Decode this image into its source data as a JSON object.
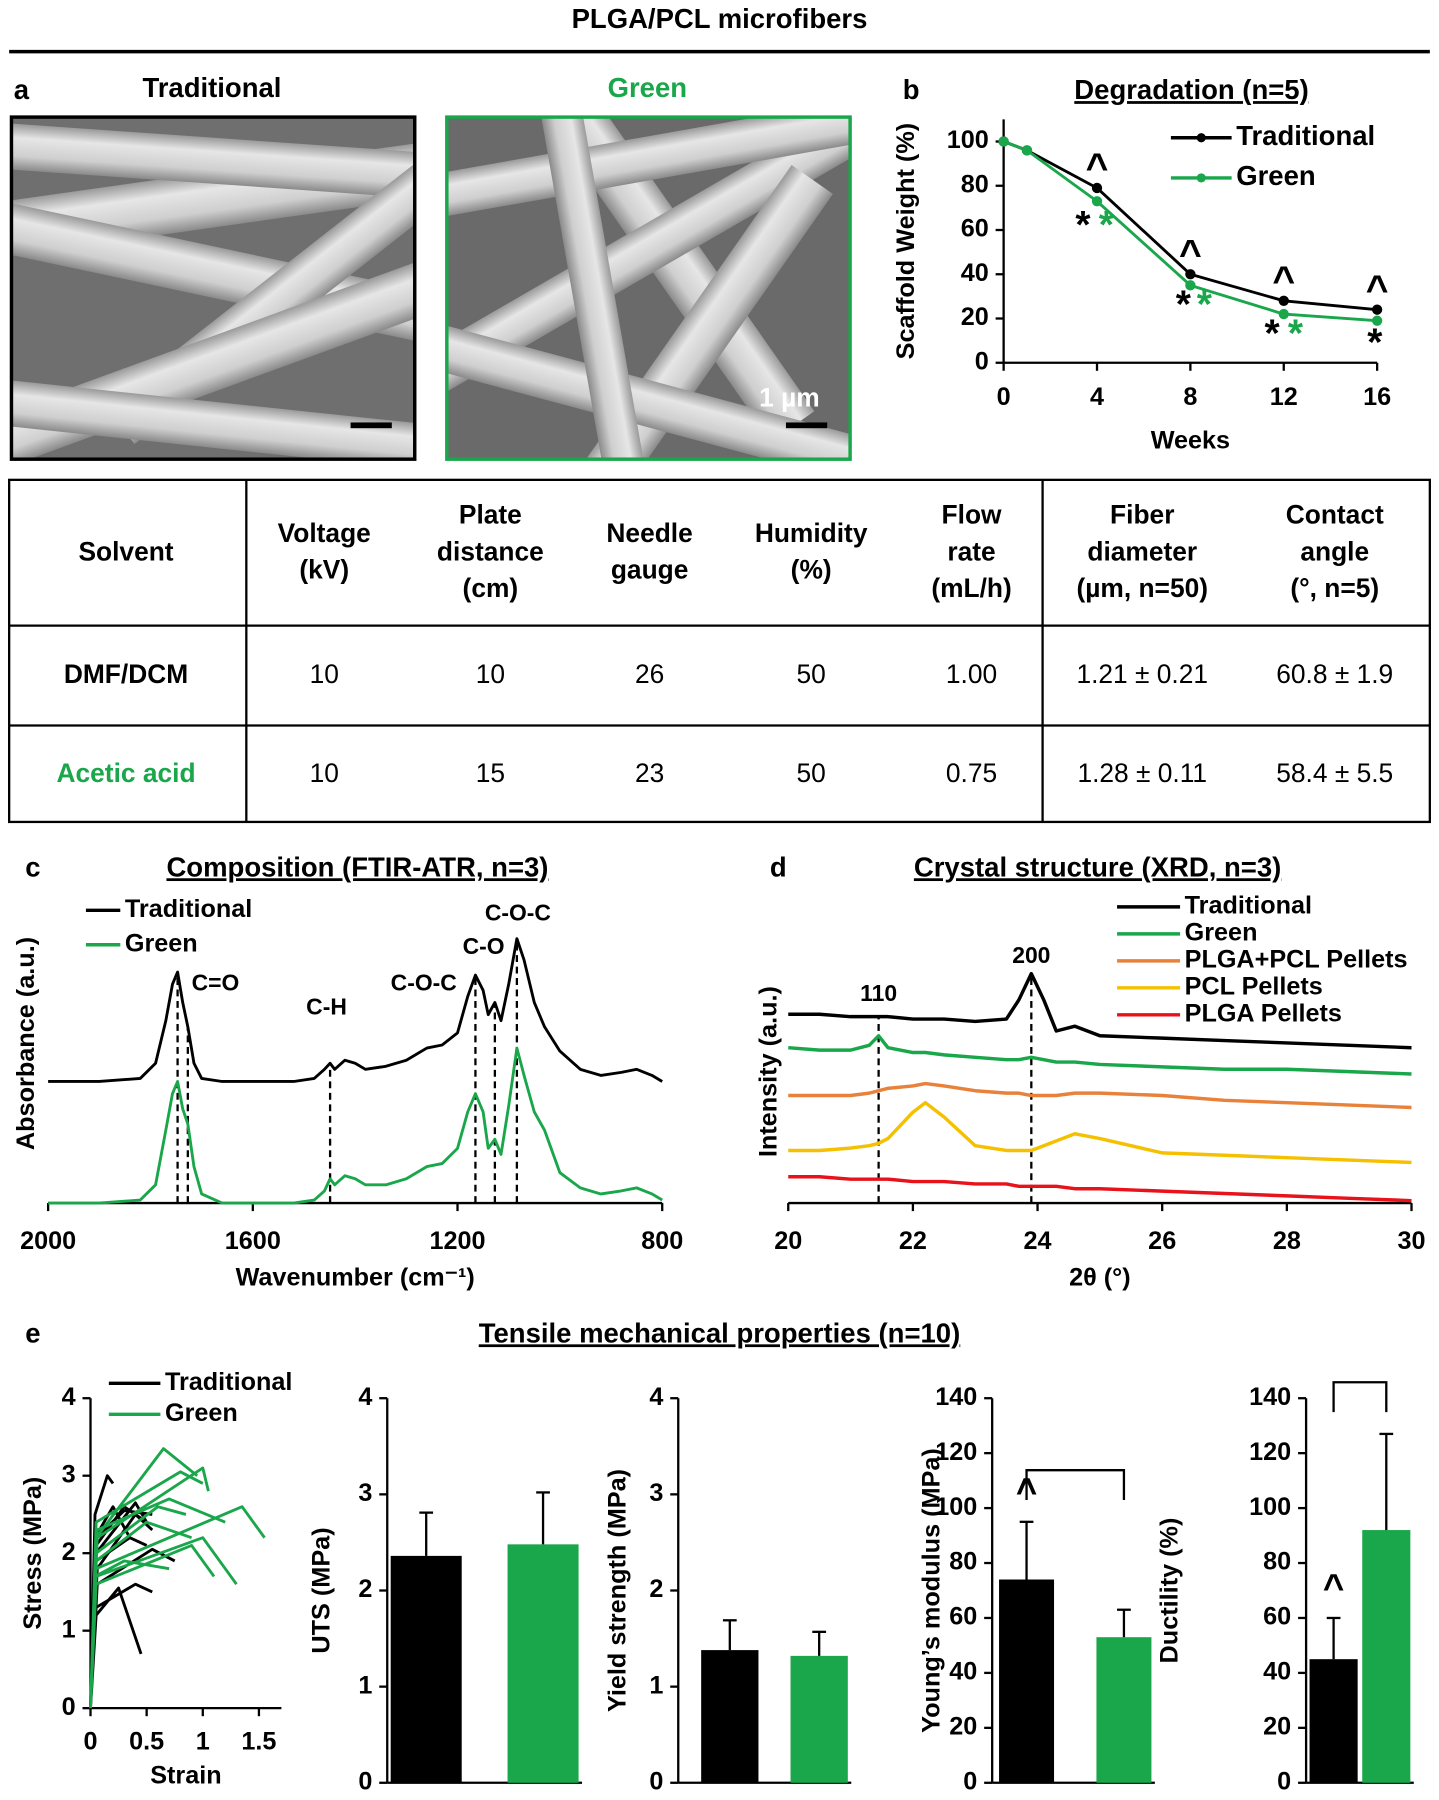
{
  "title": "PLGA/PCL microfibers",
  "panel_a": {
    "label": "a",
    "images": [
      {
        "title": "Traditional"
      },
      {
        "title": "Green",
        "scale_bar": "1 µm"
      }
    ]
  },
  "table": {
    "header": [
      [
        "Solvent"
      ],
      [
        "Voltage",
        "(kV)"
      ],
      [
        "Plate",
        "distance",
        "(cm)"
      ],
      [
        "Needle",
        "gauge"
      ],
      [
        "Humidity",
        "(%)"
      ],
      [
        "Flow",
        "rate",
        "(mL/h)"
      ],
      [
        "Fiber",
        "diameter",
        "(µm, n=50)"
      ],
      [
        "Contact",
        "angle",
        "(°, n=5)"
      ]
    ],
    "rows": [
      [
        "DMF/DCM",
        "10",
        "10",
        "26",
        "50",
        "1.00",
        "1.21 ± 0.21",
        "60.8 ± 1.9"
      ],
      [
        "Acetic acid",
        "10",
        "15",
        "23",
        "50",
        "0.75",
        "1.28 ± 0.11",
        "58.4 ± 5.5"
      ]
    ]
  },
  "section_e": {
    "label": "e",
    "title": "Tensile mechanical properties (n=10)"
  },
  "chart_data": [
    {
      "type": "line",
      "panel": "b",
      "title": "Degradation (n=5)",
      "xlabel": "Weeks",
      "ylabel": "Scaffold Weight (%)",
      "x": [
        0,
        1,
        4,
        8,
        12,
        16
      ],
      "series": [
        {
          "name": "Traditional",
          "color": "#000000",
          "values": [
            100,
            96,
            79,
            40,
            28,
            24
          ]
        },
        {
          "name": "Green",
          "color": "#1aa64a",
          "values": [
            100,
            96,
            73,
            35,
            22,
            19
          ]
        }
      ],
      "xlim": [
        0,
        16
      ],
      "xticks": [
        0,
        4,
        8,
        12,
        16
      ],
      "ylim": [
        0,
        110
      ],
      "yticks": [
        0,
        20,
        40,
        60,
        80,
        100
      ],
      "markers": true,
      "legend": "upper right",
      "annotations": [
        {
          "text": "^",
          "x": 4,
          "y": 87,
          "color": "#000000"
        },
        {
          "text": "^",
          "x": 8,
          "y": 48,
          "color": "#000000"
        },
        {
          "text": "^",
          "x": 12,
          "y": 36,
          "color": "#000000"
        },
        {
          "text": "^",
          "x": 16,
          "y": 32,
          "color": "#000000"
        },
        {
          "text": "*",
          "x": 3.4,
          "y": 61,
          "color": "#000000"
        },
        {
          "text": "*",
          "x": 4.4,
          "y": 61,
          "color": "#1aa64a"
        },
        {
          "text": "*",
          "x": 7.7,
          "y": 25,
          "color": "#000000"
        },
        {
          "text": "*",
          "x": 8.6,
          "y": 25,
          "color": "#1aa64a"
        },
        {
          "text": "*",
          "x": 11.5,
          "y": 12,
          "color": "#000000"
        },
        {
          "text": "*",
          "x": 12.5,
          "y": 12,
          "color": "#1aa64a"
        },
        {
          "text": "*",
          "x": 15.9,
          "y": 8,
          "color": "#000000"
        }
      ]
    },
    {
      "type": "line",
      "panel": "c",
      "title": "Composition (FTIR-ATR, n=3)",
      "xlabel": "Wavenumber (cm⁻¹)",
      "ylabel": "Absorbance (a.u.)",
      "x": [
        2000,
        1900,
        1820,
        1790,
        1770,
        1757,
        1747,
        1737,
        1727,
        1715,
        1700,
        1660,
        1600,
        1520,
        1480,
        1460,
        1449,
        1440,
        1420,
        1400,
        1380,
        1340,
        1300,
        1260,
        1230,
        1200,
        1180,
        1165,
        1150,
        1140,
        1127,
        1115,
        1100,
        1084,
        1070,
        1050,
        1030,
        1000,
        960,
        920,
        880,
        850,
        820,
        800
      ],
      "series": [
        {
          "name": "Traditional",
          "color": "#000000",
          "values": [
            0.4,
            0.4,
            0.41,
            0.46,
            0.6,
            0.72,
            0.76,
            0.66,
            0.58,
            0.46,
            0.41,
            0.4,
            0.4,
            0.4,
            0.41,
            0.44,
            0.46,
            0.44,
            0.47,
            0.46,
            0.44,
            0.45,
            0.47,
            0.51,
            0.52,
            0.56,
            0.68,
            0.75,
            0.7,
            0.62,
            0.66,
            0.6,
            0.72,
            0.87,
            0.8,
            0.66,
            0.58,
            0.5,
            0.44,
            0.42,
            0.43,
            0.44,
            0.42,
            0.4
          ]
        },
        {
          "name": "Green",
          "color": "#1aa64a",
          "values": [
            0,
            0,
            0.01,
            0.06,
            0.24,
            0.36,
            0.4,
            0.31,
            0.26,
            0.12,
            0.03,
            0,
            0,
            0,
            0.01,
            0.04,
            0.08,
            0.06,
            0.09,
            0.08,
            0.06,
            0.06,
            0.08,
            0.12,
            0.13,
            0.18,
            0.3,
            0.36,
            0.3,
            0.18,
            0.21,
            0.16,
            0.32,
            0.51,
            0.42,
            0.3,
            0.24,
            0.1,
            0.05,
            0.03,
            0.04,
            0.05,
            0.03,
            0.01
          ]
        }
      ],
      "xlim": [
        2000,
        800
      ],
      "xticks": [
        2000,
        1600,
        1200,
        800
      ],
      "ylim": [
        0,
        1.05
      ],
      "legend": "upper left",
      "peak_lines": [
        1747,
        1727,
        1449,
        1165,
        1127,
        1084
      ],
      "annotations": [
        {
          "text": "C=O",
          "x": 1673,
          "y": 0.72
        },
        {
          "text": "C-H",
          "x": 1456,
          "y": 0.64
        },
        {
          "text": "C-O-C",
          "x": 1266,
          "y": 0.72
        },
        {
          "text": "C-O",
          "x": 1149,
          "y": 0.84
        },
        {
          "text": "C-O-C",
          "x": 1082,
          "y": 0.95
        }
      ]
    },
    {
      "type": "line",
      "panel": "d",
      "title": "Crystal structure (XRD, n=3)",
      "xlabel": "2θ (°)",
      "ylabel": "Intensity (a.u.)",
      "x": [
        20,
        20.5,
        21,
        21.3,
        21.45,
        21.6,
        22,
        22.2,
        22.5,
        23,
        23.5,
        23.7,
        23.9,
        24.1,
        24.3,
        24.6,
        25,
        26,
        27,
        28,
        29,
        30
      ],
      "series": [
        {
          "name": "Traditional",
          "color": "#000000",
          "values": [
            0.79,
            0.79,
            0.78,
            0.78,
            0.78,
            0.78,
            0.77,
            0.77,
            0.77,
            0.76,
            0.77,
            0.85,
            0.96,
            0.85,
            0.72,
            0.74,
            0.7,
            0.69,
            0.68,
            0.67,
            0.66,
            0.65
          ]
        },
        {
          "name": "Green",
          "color": "#1aa64a",
          "values": [
            0.65,
            0.64,
            0.64,
            0.66,
            0.7,
            0.65,
            0.63,
            0.63,
            0.62,
            0.61,
            0.6,
            0.6,
            0.61,
            0.6,
            0.59,
            0.59,
            0.58,
            0.57,
            0.56,
            0.56,
            0.55,
            0.54
          ]
        },
        {
          "name": "PLGA+PCL Pellets",
          "color": "#e8823a",
          "values": [
            0.45,
            0.45,
            0.45,
            0.46,
            0.47,
            0.48,
            0.49,
            0.5,
            0.49,
            0.47,
            0.46,
            0.46,
            0.45,
            0.45,
            0.45,
            0.46,
            0.46,
            0.45,
            0.43,
            0.42,
            0.41,
            0.4
          ]
        },
        {
          "name": "PCL Pellets",
          "color": "#f5c000",
          "values": [
            0.22,
            0.22,
            0.23,
            0.24,
            0.25,
            0.27,
            0.38,
            0.42,
            0.36,
            0.24,
            0.22,
            0.22,
            0.22,
            0.24,
            0.26,
            0.29,
            0.27,
            0.21,
            0.2,
            0.19,
            0.18,
            0.17
          ]
        },
        {
          "name": "PLGA Pellets",
          "color": "#e8121b",
          "values": [
            0.11,
            0.11,
            0.1,
            0.1,
            0.1,
            0.1,
            0.09,
            0.09,
            0.09,
            0.08,
            0.08,
            0.07,
            0.07,
            0.07,
            0.07,
            0.06,
            0.06,
            0.05,
            0.04,
            0.03,
            0.02,
            0.01
          ]
        }
      ],
      "xlim": [
        20,
        30
      ],
      "xticks": [
        20,
        22,
        24,
        26,
        28,
        30
      ],
      "ylim": [
        0,
        1.1
      ],
      "legend": "upper right",
      "peak_lines": [
        21.45,
        23.9
      ],
      "annotations": [
        {
          "text": "110",
          "x": 21.45,
          "y": 0.87
        },
        {
          "text": "200",
          "x": 23.9,
          "y": 1.03
        }
      ]
    },
    {
      "type": "line",
      "xlabel": "Strain",
      "ylabel": "Stress (MPa)",
      "series": [
        {
          "name": "Traditional",
          "color": "#000000",
          "x": [
            0,
            0.05,
            0.25,
            0.45,
            null,
            0,
            0.05,
            0.4,
            0.55,
            null,
            0,
            0.06,
            0.55,
            0.75,
            null,
            0,
            0.06,
            0.4,
            0.55,
            null,
            0,
            0.05,
            0.4,
            0.5,
            null,
            0,
            0.05,
            0.3,
            0.45,
            null,
            0,
            0.04,
            0.2,
            0.35,
            null,
            0,
            0.04,
            0.15,
            0.2,
            null,
            0,
            0.05,
            0.3,
            0.55,
            null,
            0,
            0.05,
            0.35,
            0.5
          ],
          "values": [
            0,
            1.2,
            1.55,
            0.7,
            null,
            0,
            1.3,
            1.6,
            1.5,
            null,
            0,
            1.6,
            2.05,
            1.9,
            null,
            0,
            1.8,
            2.5,
            2.3,
            null,
            0,
            2.0,
            2.65,
            2.4,
            null,
            0,
            2.1,
            2.6,
            2.45,
            null,
            0,
            2.2,
            2.6,
            2.2,
            null,
            0,
            2.5,
            3.0,
            2.9,
            null,
            0,
            2.2,
            2.55,
            2.5,
            null,
            0,
            1.9,
            2.2,
            2.1
          ]
        },
        {
          "name": "Green",
          "color": "#1aa64a",
          "x": [
            0,
            0.05,
            0.65,
            0.95,
            null,
            0,
            0.06,
            1.0,
            1.05,
            null,
            0,
            0.05,
            1.35,
            1.55,
            null,
            0,
            0.05,
            1.0,
            1.3,
            null,
            0,
            0.05,
            0.9,
            1.1,
            null,
            0,
            0.06,
            0.7,
            1.2,
            null,
            0,
            0.05,
            0.6,
            0.85,
            null,
            0,
            0.04,
            0.3,
            0.7,
            null,
            0,
            0.05,
            0.8,
            1.0,
            null,
            0,
            0.05,
            0.5,
            0.9
          ],
          "values": [
            0,
            2.2,
            3.35,
            3.0,
            null,
            0,
            2.2,
            3.1,
            2.8,
            null,
            0,
            1.8,
            2.6,
            2.2,
            null,
            0,
            1.7,
            2.2,
            1.6,
            null,
            0,
            1.6,
            2.1,
            1.7,
            null,
            0,
            2.3,
            2.7,
            2.4,
            null,
            0,
            2.0,
            2.6,
            2.5,
            null,
            0,
            1.7,
            1.9,
            1.8,
            null,
            0,
            2.4,
            3.05,
            2.9,
            null,
            0,
            1.9,
            2.4,
            2.2
          ]
        }
      ],
      "xlim": [
        0,
        1.7
      ],
      "xticks": [
        0,
        0.5,
        1,
        1.5
      ],
      "ylim": [
        0,
        4
      ],
      "yticks": [
        0,
        1,
        2,
        3,
        4
      ],
      "legend": "upper left"
    },
    {
      "type": "bar",
      "ylabel": "UTS (MPa)",
      "categories": [
        null,
        null
      ],
      "values": [
        2.36,
        2.48
      ],
      "errors": [
        0.45,
        0.54
      ],
      "colors": [
        "#000000",
        "#1aa64a"
      ],
      "ylim": [
        0,
        4
      ],
      "yticks": [
        0,
        1,
        2,
        3,
        4
      ]
    },
    {
      "type": "bar",
      "ylabel": "Yield strength (MPa)",
      "categories": [
        null,
        null
      ],
      "values": [
        1.38,
        1.32
      ],
      "errors": [
        0.31,
        0.25
      ],
      "colors": [
        "#000000",
        "#1aa64a"
      ],
      "ylim": [
        0,
        4
      ],
      "yticks": [
        0,
        1,
        2,
        3,
        4
      ]
    },
    {
      "type": "bar",
      "ylabel": "Young’s modulus (MPa)",
      "categories": [
        null,
        null
      ],
      "values": [
        74,
        53
      ],
      "errors": [
        21,
        10
      ],
      "colors": [
        "#000000",
        "#1aa64a"
      ],
      "ylim": [
        0,
        140
      ],
      "yticks": [
        0,
        20,
        40,
        60,
        80,
        100,
        120,
        140
      ],
      "annotations": [
        {
          "text": "^",
          "index": 0
        }
      ],
      "bracket": true
    },
    {
      "type": "bar",
      "ylabel": "Ductility (%)",
      "categories": [
        null,
        null
      ],
      "values": [
        45,
        92
      ],
      "errors": [
        15,
        35
      ],
      "colors": [
        "#000000",
        "#1aa64a"
      ],
      "ylim": [
        0,
        140
      ],
      "yticks": [
        0,
        20,
        40,
        60,
        80,
        100,
        120,
        140
      ],
      "annotations": [
        {
          "text": "^",
          "index": 0
        }
      ],
      "bracket": true
    }
  ]
}
